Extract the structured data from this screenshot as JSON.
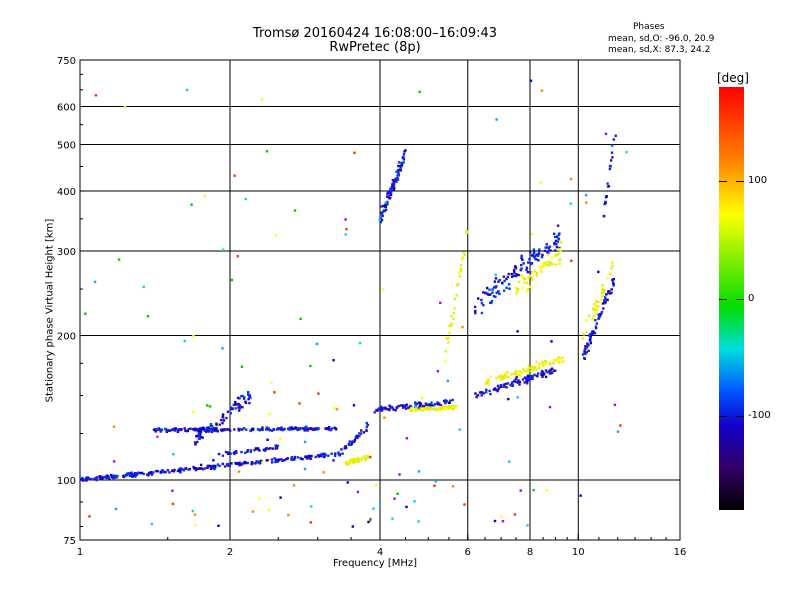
{
  "header": {
    "title": "Tromsø 20160424 16:08:00–16:09:43",
    "subtitle": "RwPretec (8p)",
    "stats_title": "Phases",
    "stats_o": "mean, sd,O: -96.0, 20.9",
    "stats_x": "mean, sd,X:  87.3, 24.2"
  },
  "colorbar": {
    "label": "[deg]",
    "ticks": [
      "100",
      "0",
      "-100"
    ],
    "tick_values": [
      100,
      0,
      -100
    ],
    "range": [
      -180,
      180
    ],
    "colors": [
      "#000000",
      "#330066",
      "#1100cc",
      "#0055ff",
      "#00dddd",
      "#00dd00",
      "#ffff00",
      "#ff8800",
      "#ff0000"
    ]
  },
  "chart_data": {
    "type": "scatter",
    "title": "Tromsø 20160424 16:08:00–16:09:43",
    "subtitle": "RwPretec (8p)",
    "xlabel": "Frequency [MHz]",
    "ylabel": "Stationary phase Virtual Height [km]",
    "xscale": "log",
    "yscale": "log",
    "xlim": [
      1,
      16
    ],
    "ylim": [
      75,
      750
    ],
    "xticks": [
      1,
      2,
      4,
      6,
      8,
      10,
      16
    ],
    "xtick_labels": [
      "1",
      "2",
      "4",
      "6",
      "8",
      "10",
      "16"
    ],
    "yticks": [
      75,
      100,
      200,
      300,
      400,
      500,
      600,
      750
    ],
    "ytick_labels": [
      "75",
      "100",
      "200",
      "300",
      "400",
      "500",
      "600",
      "750"
    ],
    "grid": true,
    "traces": [
      {
        "f0": 1.0,
        "f1": 3.2,
        "h0": 100,
        "h1": 113,
        "hue": "blue",
        "n": 260,
        "spread": 0.015
      },
      {
        "f0": 1.4,
        "f1": 3.3,
        "h0": 127,
        "h1": 128,
        "hue": "blue",
        "n": 200,
        "spread": 0.012
      },
      {
        "f0": 1.7,
        "f1": 2.2,
        "h0": 120,
        "h1": 150,
        "hue": "blue",
        "n": 80,
        "spread": 0.05
      },
      {
        "f0": 1.9,
        "f1": 2.5,
        "h0": 113,
        "h1": 117,
        "hue": "blue",
        "n": 40,
        "spread": 0.015
      },
      {
        "f0": 3.2,
        "f1": 3.8,
        "h0": 110,
        "h1": 130,
        "hue": "blue",
        "n": 40,
        "spread": 0.03
      },
      {
        "f0": 3.4,
        "f1": 3.8,
        "h0": 108,
        "h1": 112,
        "hue": "yellow",
        "n": 40,
        "spread": 0.015
      },
      {
        "f0": 3.9,
        "f1": 5.6,
        "h0": 140,
        "h1": 145,
        "hue": "blue",
        "n": 90,
        "spread": 0.02
      },
      {
        "f0": 4.6,
        "f1": 5.7,
        "h0": 140,
        "h1": 142,
        "hue": "yellow",
        "n": 70,
        "spread": 0.012
      },
      {
        "f0": 4.0,
        "f1": 4.5,
        "h0": 350,
        "h1": 480,
        "hue": "blue",
        "n": 80,
        "spread": 0.05
      },
      {
        "f0": 6.2,
        "f1": 9.0,
        "h0": 150,
        "h1": 170,
        "hue": "blue",
        "n": 90,
        "spread": 0.03
      },
      {
        "f0": 6.5,
        "f1": 9.5,
        "h0": 160,
        "h1": 180,
        "hue": "yellow",
        "n": 80,
        "spread": 0.03
      },
      {
        "f0": 6.2,
        "f1": 9.2,
        "h0": 230,
        "h1": 320,
        "hue": "blue",
        "n": 120,
        "spread": 0.08
      },
      {
        "f0": 7.5,
        "f1": 9.3,
        "h0": 250,
        "h1": 300,
        "hue": "yellow",
        "n": 60,
        "spread": 0.07
      },
      {
        "f0": 10.2,
        "f1": 11.8,
        "h0": 180,
        "h1": 260,
        "hue": "blue",
        "n": 70,
        "spread": 0.05
      },
      {
        "f0": 10.2,
        "f1": 11.8,
        "h0": 200,
        "h1": 280,
        "hue": "yellow",
        "n": 35,
        "spread": 0.05
      },
      {
        "f0": 11.2,
        "f1": 12.2,
        "h0": 350,
        "h1": 650,
        "hue": "blue",
        "n": 20,
        "spread": 0.06
      },
      {
        "f0": 5.4,
        "f1": 6.0,
        "h0": 180,
        "h1": 330,
        "hue": "yellow",
        "n": 30,
        "spread": 0.07
      }
    ],
    "noise": {
      "count": 140,
      "f_range": [
        1.0,
        12.5
      ],
      "h_range": [
        80,
        700
      ]
    }
  }
}
